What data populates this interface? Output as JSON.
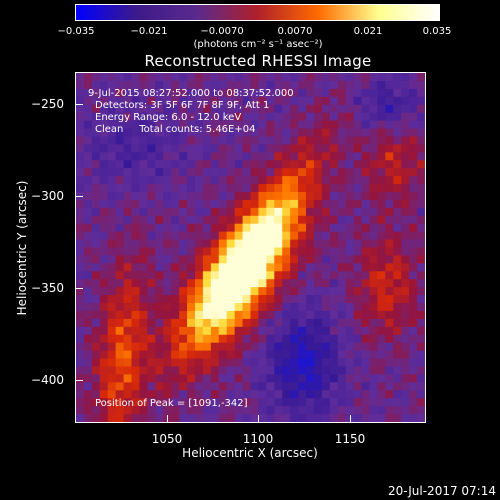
{
  "colorbar": {
    "tick_labels": [
      "−0.035",
      "−0.021",
      "−0.0070",
      "0.0070",
      "0.021",
      "0.035"
    ],
    "units": "(photons cm⁻² s⁻¹ asec⁻²)",
    "colors": [
      "#0000ff",
      "#3d1a8a",
      "#5a2a8c",
      "#b0202a",
      "#ff6a00",
      "#ffff90",
      "#ffffff"
    ]
  },
  "plot": {
    "title": "Reconstructed RHESSI Image",
    "annotations": {
      "time_range": "9-Jul-2015 08:27:52.000 to 08:37:52.000",
      "detectors": "Detectors: 3F 5F 6F 7F 8F 9F, Att 1",
      "energy_range": "Energy Range: 6.0 - 12.0 keV",
      "method_counts": "Clean     Total counts: 5.46E+04",
      "peak": "Position of Peak = [1091,-342]"
    },
    "x_axis": {
      "label": "Heliocentric X (arcsec)",
      "ticks": [
        "1050",
        "1100",
        "1150"
      ]
    },
    "y_axis": {
      "label": "Heliocentric Y (arcsec)",
      "ticks": [
        "−250",
        "−300",
        "−350",
        "−400"
      ]
    }
  },
  "footer": {
    "date": "20-Jul-2017 07:14"
  }
}
